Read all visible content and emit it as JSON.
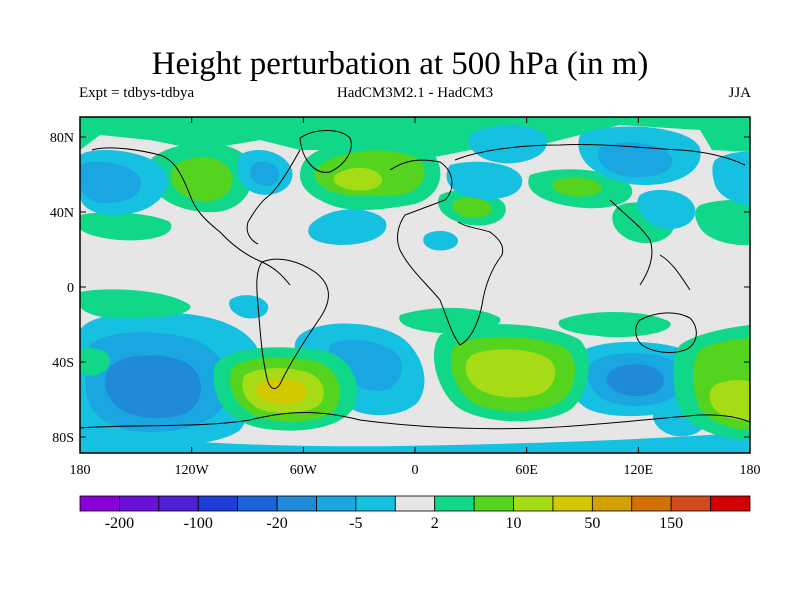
{
  "title": "Height perturbation at 500 hPa (in m)",
  "subtitle_left": "Expt = tdbys-tdbya",
  "subtitle_center": "HadCM3M2.1 - HadCM3",
  "subtitle_right": "JJA",
  "axes": {
    "x_ticks": [
      "180",
      "120W",
      "60W",
      "0",
      "60E",
      "120E",
      "180"
    ],
    "y_ticks": [
      "80N",
      "40N",
      "0",
      "40S",
      "80S"
    ]
  },
  "colorbar": {
    "labels": [
      "-200",
      "-100",
      "-20",
      "-5",
      "2",
      "10",
      "50",
      "150"
    ],
    "colors": [
      "#8a00d8",
      "#6a10d8",
      "#5020d6",
      "#1e3cd8",
      "#1e64d8",
      "#1e8ad8",
      "#1aa6e0",
      "#16c0e0",
      "#e6e6e6",
      "#10d888",
      "#54d41e",
      "#a6dc16",
      "#d2c800",
      "#d2a000",
      "#d27000",
      "#d24a1e",
      "#d20000"
    ]
  },
  "map_colors": {
    "neutral": "#e6e6e6",
    "neg1": "#16c0e0",
    "neg2": "#1aa6e0",
    "neg3": "#1e8ad8",
    "pos1": "#10d888",
    "pos2": "#54d41e",
    "pos3": "#a6dc16",
    "pos4": "#d2c800"
  }
}
